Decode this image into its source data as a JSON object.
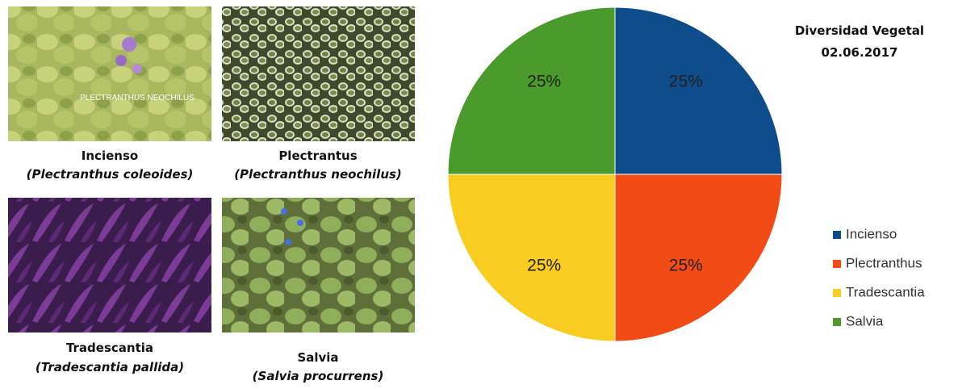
{
  "photos": [
    {
      "name": "Incienso",
      "scientific": "(Plectranthus coleoides)",
      "overlay": "PLECTRANTHUS  NEOCHILUS"
    },
    {
      "name": "Plectrantus",
      "scientific": "(Plectranthus neochilus)"
    },
    {
      "name": "Tradescantia",
      "scientific": "(Tradescantia pallida)"
    },
    {
      "name": "Salvia",
      "scientific": "(Salvia procurrens)"
    }
  ],
  "chart_data": {
    "type": "pie",
    "title": "Diversidad Vegetal",
    "subtitle": "02.06.2017",
    "categories": [
      "Incienso",
      "Plectranthus",
      "Tradescantia",
      "Salvia"
    ],
    "values": [
      25,
      25,
      25,
      25
    ],
    "value_labels": [
      "25%",
      "25%",
      "25%",
      "25%"
    ],
    "colors": [
      "#0f4c8c",
      "#f24b16",
      "#f9cd1f",
      "#4a9a2c"
    ],
    "legend": "right"
  }
}
